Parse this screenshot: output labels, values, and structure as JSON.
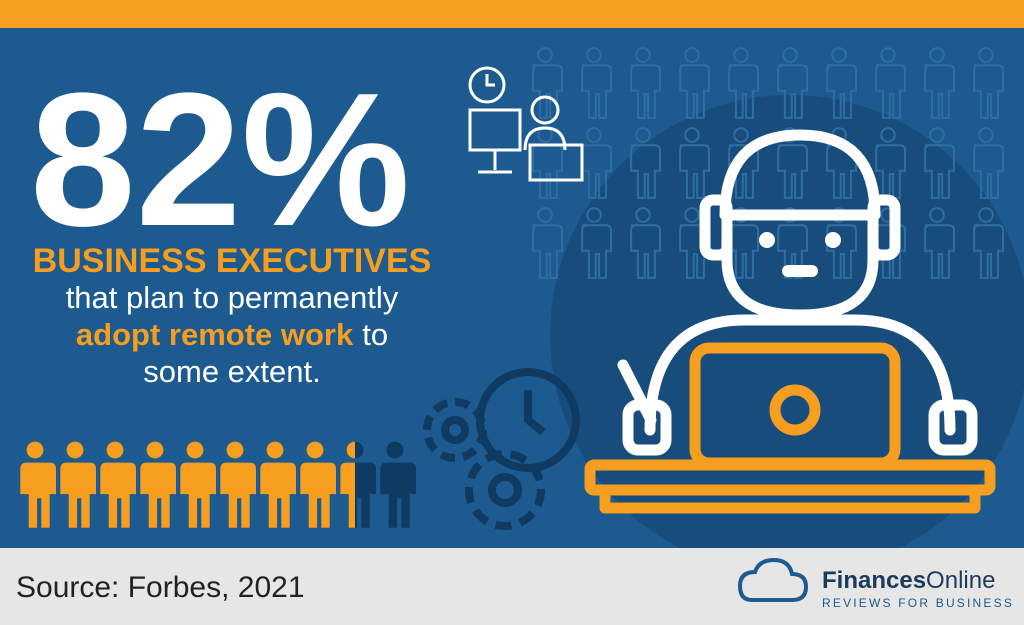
{
  "headline": {
    "stat": "82%",
    "subject": "BUSINESS EXECUTIVES",
    "line1": "that plan to permanently",
    "highlight": "adopt remote work",
    "line2_rest": "to",
    "line3": "some extent."
  },
  "footer": {
    "source": "Source: Forbes, 2021",
    "brand_bold": "Finances",
    "brand_light": "Online",
    "tagline": "REVIEWS FOR BUSINESS"
  }
}
